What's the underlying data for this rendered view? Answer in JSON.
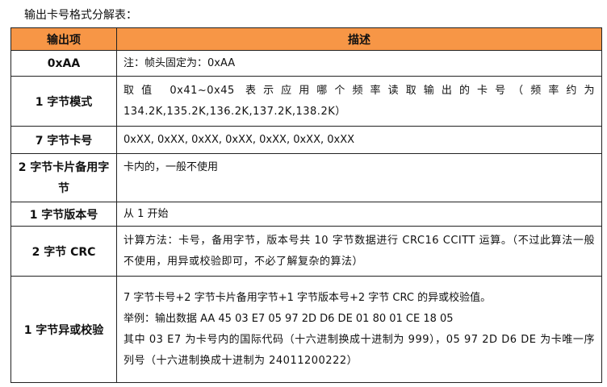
{
  "title": "输出卡号格式分解表：",
  "table": {
    "headers": [
      "输出项",
      "描述"
    ],
    "header_color": "#F79646",
    "rows": [
      {
        "item": "0xAA",
        "desc": [
          "注：帧头固定为：0xAA"
        ]
      },
      {
        "item": "1 字节模式",
        "desc": [
          "取值 0x41~0x45 表示应用哪个频率读取输出的卡号（频率约为 134.2K,135.2K,136.2K,137.2K,138.2K）"
        ]
      },
      {
        "item": "7 字节卡号",
        "desc": [
          "0xXX, 0xXX, 0xXX, 0xXX, 0xXX, 0xXX, 0xXX"
        ]
      },
      {
        "item": "2 字节卡片备用字节",
        "desc": [
          "卡内的，一般不使用"
        ]
      },
      {
        "item": "1 字节版本号",
        "desc": [
          "从 1 开始"
        ]
      },
      {
        "item": "2 字节 CRC",
        "desc": [
          "计算方法：卡号，备用字节，版本号共 10 字节数据进行 CRC16 CCITT 运算。（不过此算法一般不使用，用异或校验即可，不必了解复杂的算法）"
        ]
      },
      {
        "item": "1 字节异或校验",
        "desc": [
          "7 字节卡号+2 字节卡片备用字节+1 字节版本号+2 字节 CRC 的异或校验值。",
          "举例：输出数据 AA 45 03 E7 05 97 2D D6 DE 01 80 01 CE 18 05",
          "其中 03 E7 为卡号内的国际代码（十六进制换成十进制为 999），05 97 2D D6 DE 为卡唯一序列号（十六进制换成十进制为 24011200222）"
        ]
      }
    ]
  }
}
